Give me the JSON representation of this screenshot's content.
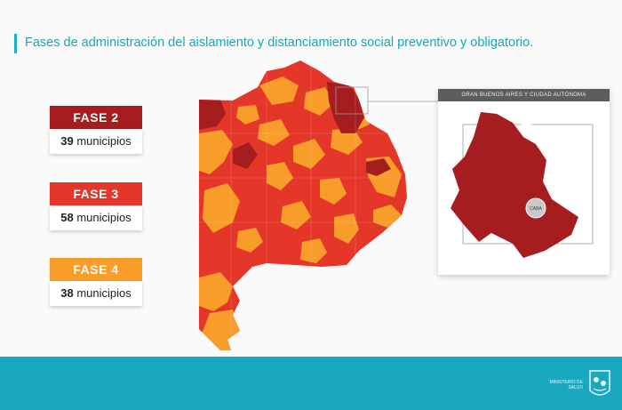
{
  "title": "Fases de administración del aislamiento y distanciamiento social preventivo y obligatorio.",
  "colors": {
    "fase2": "#a51d1f",
    "fase3": "#e5362a",
    "fase4": "#f89c2a",
    "accent": "#19b3c4",
    "footer": "#1aa7c0"
  },
  "legend": [
    {
      "label": "FASE 2",
      "count": "39",
      "unit": "municipios",
      "color": "#a51d1f"
    },
    {
      "label": "FASE 3",
      "count": "58",
      "unit": "municipios",
      "color": "#e5362a"
    },
    {
      "label": "FASE 4",
      "count": "38",
      "unit": "municipios",
      "color": "#f89c2a"
    }
  ],
  "inset": {
    "header": "GRAN BUENOS AIRES Y CIUDAD AUTÓNOMA",
    "caba_label": "CABA"
  },
  "footer": {
    "logo_text": "MINISTERIO DE SALUD"
  },
  "icons": [
    "province-logo-icon"
  ]
}
